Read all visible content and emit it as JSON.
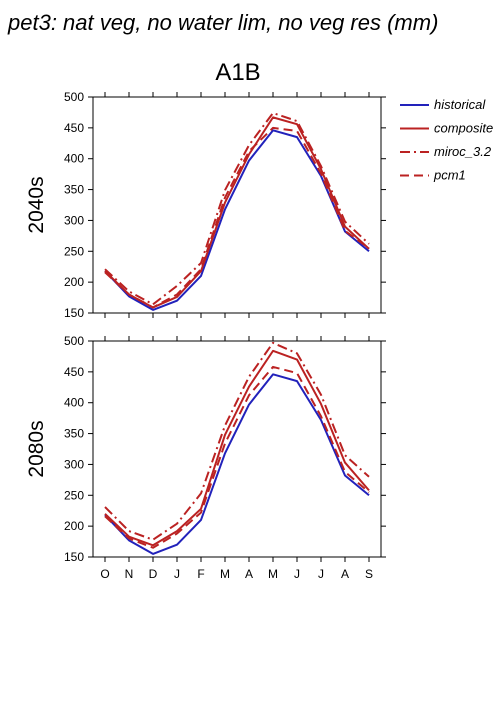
{
  "figure": {
    "title": "pet3: nat veg, no water lim, no veg res (mm)",
    "scenario": "A1B"
  },
  "legend": {
    "placement": "top-right",
    "entries": [
      {
        "label": "historical",
        "color": "#2222bb",
        "dash": "solid"
      },
      {
        "label": "composite",
        "color": "#bb2222",
        "dash": "solid"
      },
      {
        "label": "miroc_3.2",
        "color": "#bb2222",
        "dash": "dashdot"
      },
      {
        "label": "pcm1",
        "color": "#bb2222",
        "dash": "dashed"
      }
    ]
  },
  "chart_data": [
    {
      "type": "line",
      "title": "2040s",
      "xlabel": "",
      "ylabel": "",
      "x": [
        "O",
        "N",
        "D",
        "J",
        "F",
        "M",
        "A",
        "M",
        "J",
        "J",
        "A",
        "S"
      ],
      "ylim": [
        150,
        500
      ],
      "yticks": [
        150,
        200,
        250,
        300,
        350,
        400,
        450,
        500
      ],
      "grid": false,
      "series": [
        {
          "name": "historical",
          "values": [
            218,
            177,
            155,
            170,
            210,
            318,
            397,
            446,
            435,
            372,
            282,
            250
          ]
        },
        {
          "name": "composite",
          "values": [
            218,
            180,
            159,
            176,
            218,
            329,
            407,
            467,
            456,
            383,
            290,
            254
          ]
        },
        {
          "name": "miroc_3.2",
          "values": [
            221,
            185,
            164,
            194,
            231,
            349,
            422,
            474,
            461,
            388,
            298,
            262
          ]
        },
        {
          "name": "pcm1",
          "values": [
            216,
            180,
            159,
            180,
            221,
            337,
            412,
            450,
            445,
            376,
            283,
            255
          ]
        }
      ]
    },
    {
      "type": "line",
      "title": "2080s",
      "xlabel": "",
      "ylabel": "",
      "x": [
        "O",
        "N",
        "D",
        "J",
        "F",
        "M",
        "A",
        "M",
        "J",
        "J",
        "A",
        "S"
      ],
      "ylim": [
        150,
        500
      ],
      "yticks": [
        150,
        200,
        250,
        300,
        350,
        400,
        450,
        500
      ],
      "grid": false,
      "series": [
        {
          "name": "historical",
          "values": [
            218,
            177,
            155,
            170,
            210,
            318,
            397,
            446,
            435,
            372,
            282,
            250
          ]
        },
        {
          "name": "composite",
          "values": [
            220,
            183,
            169,
            192,
            228,
            348,
            426,
            484,
            470,
            398,
            303,
            258
          ]
        },
        {
          "name": "miroc_3.2",
          "values": [
            231,
            192,
            178,
            204,
            253,
            363,
            442,
            497,
            480,
            413,
            315,
            280
          ]
        },
        {
          "name": "pcm1",
          "values": [
            216,
            180,
            165,
            188,
            222,
            334,
            412,
            458,
            448,
            378,
            288,
            255
          ]
        }
      ]
    }
  ]
}
